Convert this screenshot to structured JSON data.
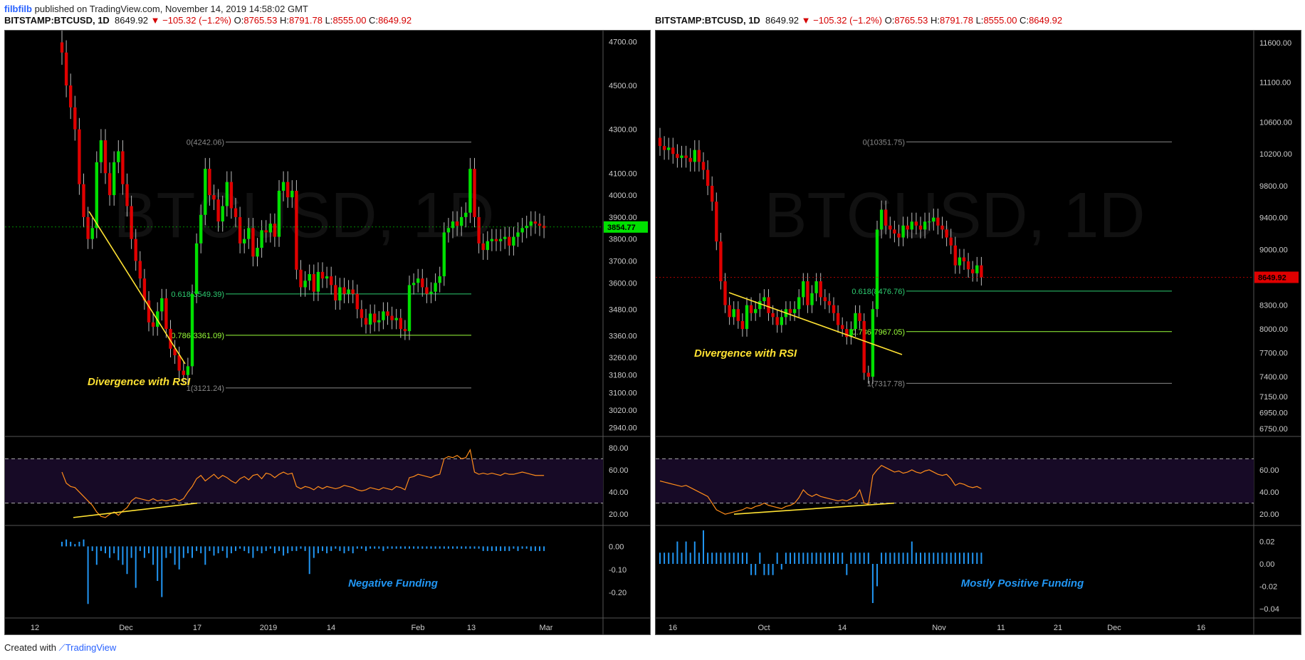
{
  "header": {
    "author": "filbfilb",
    "published": "published on TradingView.com, November 14, 2019 14:58:02 GMT"
  },
  "footer": {
    "created_with": "Created with",
    "brand": "TradingView"
  },
  "colors": {
    "up": "#00e000",
    "down": "#e00000",
    "accent": "#2962ff",
    "rsi": "#ff8c1a",
    "annotation": "#ffe233",
    "funding": "#2196f3",
    "fib": "#9aff3a"
  },
  "charts": [
    {
      "symbol": "BITSTAMP:BTCUSD, 1D",
      "last": "8649.92",
      "change": "▼ −105.32 (−1.2%)",
      "o": "8765.53",
      "h": "8791.78",
      "l": "8555.00",
      "c": "8649.92",
      "price_axis": [
        "4700.00",
        "4500.00",
        "4300.00",
        "4100.00",
        "4000.00",
        "3900.00",
        "3800.00",
        "3700.00",
        "3600.00",
        "3480.00",
        "3360.00",
        "3260.00",
        "3180.00",
        "3100.00",
        "3020.00",
        "2940.00"
      ],
      "current_price": "3854.77",
      "fib_levels": [
        {
          "label": "0(4242.06)",
          "value": 4242.06
        },
        {
          "label": "0.618(3549.39)",
          "value": 3549.39
        },
        {
          "label": "0.786(3361.09)",
          "value": 3361.09
        },
        {
          "label": "1(3121.24)",
          "value": 3121.24
        }
      ],
      "annotation": "Divergence with RSI",
      "funding_label": "Negative Funding",
      "rsi_axis": [
        "80.00",
        "60.00",
        "40.00",
        "20.00"
      ],
      "funding_axis": [
        "0.00",
        "-0.10",
        "-0.20"
      ],
      "time_axis": [
        "12",
        "Dec",
        "17",
        "2019",
        "14",
        "Feb",
        "13",
        "Mar"
      ]
    },
    {
      "symbol": "BITSTAMP:BTCUSD, 1D",
      "last": "8649.92",
      "change": "▼ −105.32 (−1.2%)",
      "o": "8765.53",
      "h": "8791.78",
      "l": "8555.00",
      "c": "8649.92",
      "price_axis": [
        "11600.00",
        "11100.00",
        "10600.00",
        "10200.00",
        "9800.00",
        "9400.00",
        "9000.00",
        "8650.00",
        "8300.00",
        "8000.00",
        "7700.00",
        "7400.00",
        "7150.00",
        "6950.00",
        "6750.00"
      ],
      "current_price": "8649.92",
      "fib_levels": [
        {
          "label": "0(10351.75)",
          "value": 10351.75
        },
        {
          "label": "0.618(8476.76)",
          "value": 8476.76
        },
        {
          "label": "0.786(7967.05)",
          "value": 7967.05
        },
        {
          "label": "1(7317.78)",
          "value": 7317.78
        }
      ],
      "annotation": "Divergence with RSI",
      "funding_label": "Mostly Positive Funding",
      "rsi_axis": [
        "60.00",
        "40.00",
        "20.00"
      ],
      "funding_axis": [
        "0.02",
        "0.00",
        "-0.02",
        "−0.04"
      ],
      "time_axis": [
        "16",
        "Oct",
        "14",
        "Nov",
        "11",
        "21",
        "Dec",
        "16"
      ]
    }
  ],
  "chart_data": [
    {
      "type": "candlestick",
      "ylim": [
        2900,
        4750
      ],
      "closes": [
        4650,
        4500,
        4400,
        4300,
        4050,
        3900,
        3800,
        3850,
        4150,
        4250,
        4100,
        4000,
        4150,
        4200,
        4050,
        3950,
        3800,
        3700,
        3620,
        3520,
        3420,
        3400,
        3470,
        3530,
        3390,
        3300,
        3270,
        3200,
        3180,
        3220,
        3550,
        3780,
        3910,
        4120,
        4000,
        3980,
        3880,
        3950,
        4060,
        3940,
        3900,
        3780,
        3800,
        3850,
        3720,
        3760,
        3840,
        3830,
        3870,
        3810,
        4020,
        4060,
        3990,
        4020,
        3660,
        3580,
        3610,
        3640,
        3560,
        3650,
        3620,
        3630,
        3590,
        3520,
        3580,
        3550,
        3570,
        3550,
        3480,
        3440,
        3410,
        3460,
        3420,
        3430,
        3470,
        3450,
        3430,
        3440,
        3390,
        3380,
        3590,
        3600,
        3620,
        3580,
        3550,
        3560,
        3600,
        3630,
        3830,
        3850,
        3880,
        3860,
        3900,
        3920,
        4120,
        3900,
        3780,
        3750,
        3790,
        3800,
        3790,
        3800,
        3810,
        3770,
        3810,
        3830,
        3850,
        3860,
        3880,
        3870,
        3860,
        3850
      ],
      "rsi": [
        58,
        48,
        45,
        44,
        40,
        36,
        32,
        28,
        22,
        18,
        17,
        20,
        22,
        19,
        23,
        26,
        32,
        35,
        34,
        33,
        32,
        34,
        32,
        33,
        32,
        33,
        34,
        32,
        34,
        40,
        45,
        52,
        55,
        50,
        53,
        56,
        52,
        55,
        53,
        50,
        48,
        52,
        54,
        51,
        55,
        56,
        52,
        57,
        56,
        53,
        56,
        58,
        56,
        57,
        45,
        43,
        45,
        44,
        42,
        45,
        43,
        45,
        44,
        43,
        44,
        46,
        45,
        44,
        42,
        41,
        42,
        44,
        43,
        42,
        44,
        43,
        42,
        45,
        44,
        42,
        53,
        54,
        56,
        55,
        54,
        53,
        55,
        56,
        70,
        72,
        71,
        73,
        70,
        71,
        78,
        58,
        56,
        57,
        56,
        57,
        56,
        55,
        57,
        56,
        56,
        57,
        58,
        57,
        56,
        55,
        55,
        55
      ],
      "funding": [
        0.02,
        0.03,
        0.02,
        0.01,
        0.02,
        0.03,
        -0.25,
        -0.02,
        -0.08,
        -0.02,
        -0.03,
        -0.05,
        -0.03,
        -0.06,
        -0.08,
        -0.12,
        -0.05,
        -0.18,
        -0.02,
        -0.05,
        -0.03,
        -0.08,
        -0.15,
        -0.22,
        -0.05,
        -0.03,
        -0.08,
        -0.1,
        -0.05,
        -0.03,
        -0.05,
        -0.02,
        -0.03,
        -0.08,
        -0.02,
        -0.04,
        -0.03,
        -0.02,
        -0.05,
        -0.03,
        -0.02,
        -0.01,
        -0.02,
        -0.03,
        -0.05,
        -0.02,
        -0.03,
        -0.02,
        -0.01,
        -0.03,
        -0.02,
        -0.04,
        -0.03,
        -0.02,
        -0.02,
        -0.01,
        -0.02,
        -0.12,
        -0.05,
        -0.03,
        -0.02,
        -0.03,
        -0.02,
        -0.01,
        -0.02,
        -0.03,
        -0.02,
        -0.03,
        -0.01,
        -0.01,
        -0.02,
        -0.01,
        -0.01,
        -0.01,
        -0.02,
        -0.01,
        -0.01,
        -0.01,
        -0.01,
        -0.01,
        -0.01,
        -0.01,
        -0.01,
        -0.01,
        -0.01,
        -0.01,
        -0.01,
        -0.01,
        -0.01,
        -0.01,
        -0.01,
        -0.01,
        -0.01,
        -0.01,
        -0.01,
        -0.01,
        -0.01,
        -0.02,
        -0.02,
        -0.02,
        -0.02,
        -0.02,
        -0.02,
        -0.02,
        -0.01,
        -0.02,
        -0.01,
        -0.01,
        -0.02,
        -0.02,
        -0.02,
        -0.02
      ]
    },
    {
      "type": "candlestick",
      "ylim": [
        6650,
        11750
      ],
      "closes": [
        10300,
        10250,
        10280,
        10200,
        10150,
        10180,
        10150,
        10100,
        10250,
        10100,
        10000,
        9800,
        9600,
        9100,
        8600,
        8300,
        8150,
        8250,
        8100,
        8000,
        8300,
        8200,
        8250,
        8350,
        8400,
        8200,
        8150,
        8050,
        8150,
        8250,
        8200,
        8250,
        8400,
        8600,
        8300,
        8450,
        8600,
        8400,
        8350,
        8300,
        8200,
        8050,
        8000,
        7900,
        8000,
        8200,
        8100,
        7450,
        7400,
        8250,
        9250,
        9500,
        9300,
        9250,
        9200,
        9150,
        9300,
        9250,
        9350,
        9300,
        9250,
        9350,
        9350,
        9400,
        9300,
        9250,
        9150,
        9050,
        8800,
        8900,
        8850,
        8750,
        8700,
        8800,
        8650
      ],
      "rsi": [
        50,
        49,
        48,
        47,
        46,
        45,
        46,
        44,
        42,
        40,
        38,
        36,
        30,
        24,
        22,
        20,
        21,
        22,
        23,
        24,
        26,
        25,
        27,
        28,
        30,
        28,
        27,
        26,
        25,
        27,
        28,
        30,
        35,
        42,
        38,
        36,
        38,
        36,
        35,
        34,
        33,
        32,
        33,
        32,
        34,
        36,
        42,
        30,
        29,
        55,
        60,
        64,
        62,
        60,
        58,
        59,
        57,
        58,
        60,
        58,
        57,
        59,
        60,
        58,
        56,
        55,
        56,
        52,
        46,
        48,
        47,
        45,
        44,
        45,
        43
      ],
      "funding": [
        0.01,
        0.01,
        0.01,
        0.01,
        0.02,
        0.01,
        0.02,
        0.01,
        0.02,
        0.01,
        0.03,
        0.01,
        0.01,
        0.01,
        0.01,
        0.01,
        0.01,
        0.01,
        0.01,
        0.01,
        0.01,
        -0.01,
        -0.01,
        0.01,
        -0.01,
        -0.01,
        -0.01,
        0.01,
        -0.005,
        0.01,
        0.01,
        0.01,
        0.01,
        0.01,
        0.01,
        0.01,
        0.01,
        0.01,
        0.01,
        0.01,
        0.01,
        0.01,
        0.01,
        -0.01,
        0.01,
        0.01,
        0.01,
        0.01,
        0.01,
        -0.035,
        -0.02,
        0.01,
        0.01,
        0.01,
        0.01,
        0.01,
        0.01,
        0.01,
        0.02,
        0.01,
        0.01,
        0.01,
        0.01,
        0.01,
        0.01,
        0.01,
        0.01,
        0.01,
        0.01,
        0.01,
        0.01,
        0.01,
        0.01,
        0.01,
        0.01
      ]
    }
  ]
}
